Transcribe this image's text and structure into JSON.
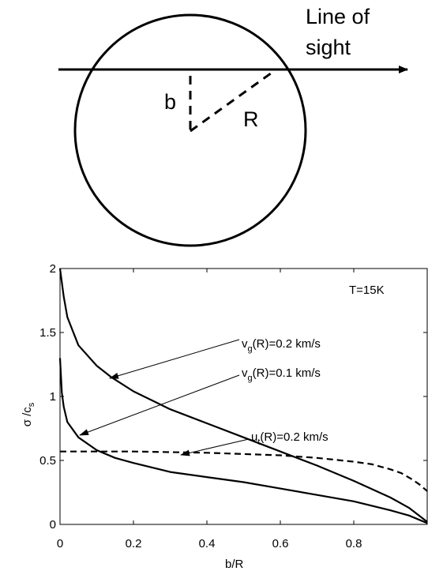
{
  "diagram": {
    "line_of_sight_lines": [
      "Line of",
      "sight"
    ],
    "b_label": "b",
    "r_label": "R"
  },
  "chart_data": {
    "type": "line",
    "annotation_text": "T=15K",
    "xlabel": "b/R",
    "ylabel": {
      "base": "σ /c",
      "sub": "s"
    },
    "xlim": [
      0,
      1
    ],
    "ylim": [
      0,
      2
    ],
    "x_ticks": [
      "0",
      "0.2",
      "0.4",
      "0.6",
      "0.8"
    ],
    "y_ticks": [
      "0",
      "0.5",
      "1",
      "1.5",
      "2"
    ],
    "grid": false,
    "series": [
      {
        "label": {
          "base": "v",
          "sub": "g",
          "rest": "(R)=0.2 km/s"
        },
        "style": "solid",
        "x": [
          0.0,
          0.01,
          0.02,
          0.05,
          0.1,
          0.14,
          0.2,
          0.3,
          0.4,
          0.5,
          0.6,
          0.7,
          0.8,
          0.9,
          0.95,
          1.0
        ],
        "y": [
          2.0,
          1.78,
          1.62,
          1.4,
          1.24,
          1.15,
          1.04,
          0.9,
          0.79,
          0.68,
          0.57,
          0.46,
          0.34,
          0.21,
          0.13,
          0.02
        ]
      },
      {
        "label": {
          "base": "v",
          "sub": "g",
          "rest": "(R)=0.1 km/s"
        },
        "style": "solid",
        "x": [
          0.0,
          0.005,
          0.01,
          0.02,
          0.05,
          0.1,
          0.15,
          0.2,
          0.3,
          0.4,
          0.5,
          0.6,
          0.7,
          0.8,
          0.9,
          0.95,
          1.0
        ],
        "y": [
          1.3,
          1.03,
          0.92,
          0.8,
          0.68,
          0.58,
          0.52,
          0.48,
          0.41,
          0.37,
          0.33,
          0.28,
          0.23,
          0.18,
          0.11,
          0.07,
          0.01
        ]
      },
      {
        "label": {
          "base": "u",
          "sub": "t",
          "rest": "(R)=0.2 km/s"
        },
        "style": "dashed",
        "x": [
          0.0,
          0.2,
          0.4,
          0.6,
          0.7,
          0.8,
          0.85,
          0.9,
          0.93,
          0.96,
          0.98,
          1.0
        ],
        "y": [
          0.57,
          0.57,
          0.56,
          0.54,
          0.52,
          0.49,
          0.47,
          0.43,
          0.4,
          0.35,
          0.31,
          0.26
        ]
      }
    ]
  }
}
